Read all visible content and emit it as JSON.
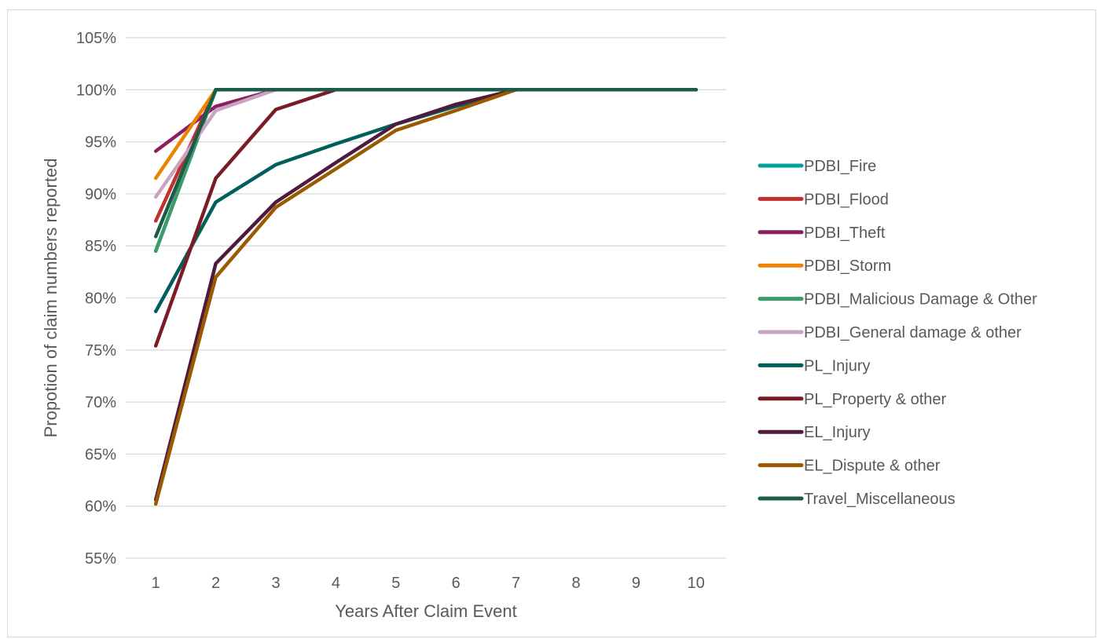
{
  "chart_data": {
    "type": "line",
    "title": "",
    "xlabel": "Years After Claim Event",
    "ylabel": "Propotion of claim numbers reported",
    "x": [
      1,
      2,
      3,
      4,
      5,
      6,
      7,
      8,
      9,
      10
    ],
    "ylim": [
      55,
      105
    ],
    "y_tick_step": 5,
    "y_tick_suffix": "%",
    "grid": "horizontal",
    "legend_position": "right",
    "series": [
      {
        "name": "PDBI_Fire",
        "color": "#00A19A",
        "values": [
          84.5,
          100,
          100,
          100,
          100,
          100,
          100,
          100,
          100,
          100
        ]
      },
      {
        "name": "PDBI_Flood",
        "color": "#C0312E",
        "values": [
          87.4,
          100,
          100,
          100,
          100,
          100,
          100,
          100,
          100,
          100
        ]
      },
      {
        "name": "PDBI_Theft",
        "color": "#8B1F5F",
        "values": [
          94.1,
          98.4,
          100,
          100,
          100,
          100,
          100,
          100,
          100,
          100
        ]
      },
      {
        "name": "PDBI_Storm",
        "color": "#EC8400",
        "values": [
          91.5,
          100,
          100,
          100,
          100,
          100,
          100,
          100,
          100,
          100
        ]
      },
      {
        "name": "PDBI_Malicious Damage & Other",
        "color": "#3C9A6B",
        "values": [
          84.5,
          100,
          100,
          100,
          100,
          100,
          100,
          100,
          100,
          100
        ]
      },
      {
        "name": "PDBI_General damage & other",
        "color": "#C9A4C2",
        "values": [
          89.7,
          98.0,
          100,
          100,
          100,
          100,
          100,
          100,
          100,
          100
        ]
      },
      {
        "name": "PL_Injury",
        "color": "#005F5A",
        "values": [
          78.7,
          89.2,
          92.8,
          94.8,
          96.7,
          98.4,
          100,
          100,
          100,
          100
        ]
      },
      {
        "name": "PL_Property & other",
        "color": "#7A1C23",
        "values": [
          75.4,
          91.5,
          98.1,
          100,
          100,
          100,
          100,
          100,
          100,
          100
        ]
      },
      {
        "name": "EL_Injury",
        "color": "#4E1A3D",
        "values": [
          60.6,
          83.3,
          89.2,
          93.0,
          96.7,
          98.6,
          100,
          100,
          100,
          100
        ]
      },
      {
        "name": "EL_Dispute & other",
        "color": "#9A5A00",
        "values": [
          60.2,
          82.0,
          88.7,
          92.4,
          96.1,
          98.0,
          100,
          100,
          100,
          100
        ]
      },
      {
        "name": "Travel_Miscellaneous",
        "color": "#1C5B48",
        "values": [
          85.9,
          100,
          100,
          100,
          100,
          100,
          100,
          100,
          100,
          100
        ]
      }
    ]
  }
}
